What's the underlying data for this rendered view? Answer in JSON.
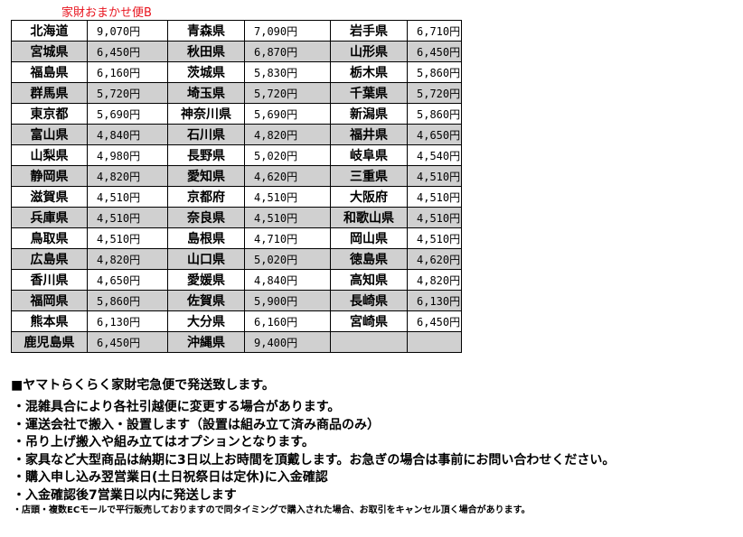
{
  "title": "家財おまかせ便B",
  "rows": [
    [
      [
        "北海道",
        "9,070円"
      ],
      [
        "青森県",
        "7,090円"
      ],
      [
        "岩手県",
        "6,710円"
      ]
    ],
    [
      [
        "宮城県",
        "6,450円"
      ],
      [
        "秋田県",
        "6,870円"
      ],
      [
        "山形県",
        "6,450円"
      ]
    ],
    [
      [
        "福島県",
        "6,160円"
      ],
      [
        "茨城県",
        "5,830円"
      ],
      [
        "栃木県",
        "5,860円"
      ]
    ],
    [
      [
        "群馬県",
        "5,720円"
      ],
      [
        "埼玉県",
        "5,720円"
      ],
      [
        "千葉県",
        "5,720円"
      ]
    ],
    [
      [
        "東京都",
        "5,690円"
      ],
      [
        "神奈川県",
        "5,690円"
      ],
      [
        "新潟県",
        "5,860円"
      ]
    ],
    [
      [
        "富山県",
        "4,840円"
      ],
      [
        "石川県",
        "4,820円"
      ],
      [
        "福井県",
        "4,650円"
      ]
    ],
    [
      [
        "山梨県",
        "4,980円"
      ],
      [
        "長野県",
        "5,020円"
      ],
      [
        "岐阜県",
        "4,540円"
      ]
    ],
    [
      [
        "静岡県",
        "4,820円"
      ],
      [
        "愛知県",
        "4,620円"
      ],
      [
        "三重県",
        "4,510円"
      ]
    ],
    [
      [
        "滋賀県",
        "4,510円"
      ],
      [
        "京都府",
        "4,510円"
      ],
      [
        "大阪府",
        "4,510円"
      ]
    ],
    [
      [
        "兵庫県",
        "4,510円"
      ],
      [
        "奈良県",
        "4,510円"
      ],
      [
        "和歌山県",
        "4,510円"
      ]
    ],
    [
      [
        "鳥取県",
        "4,510円"
      ],
      [
        "島根県",
        "4,710円"
      ],
      [
        "岡山県",
        "4,510円"
      ]
    ],
    [
      [
        "広島県",
        "4,820円"
      ],
      [
        "山口県",
        "5,020円"
      ],
      [
        "徳島県",
        "4,620円"
      ]
    ],
    [
      [
        "香川県",
        "4,650円"
      ],
      [
        "愛媛県",
        "4,840円"
      ],
      [
        "高知県",
        "4,820円"
      ]
    ],
    [
      [
        "福岡県",
        "5,860円"
      ],
      [
        "佐賀県",
        "5,900円"
      ],
      [
        "長崎県",
        "6,130円"
      ]
    ],
    [
      [
        "熊本県",
        "6,130円"
      ],
      [
        "大分県",
        "6,160円"
      ],
      [
        "宮崎県",
        "6,450円"
      ]
    ],
    [
      [
        "鹿児島県",
        "6,450円"
      ],
      [
        "沖縄県",
        "9,400円"
      ],
      [
        "",
        ""
      ]
    ]
  ],
  "heading": "■ヤマトらくらく家財宅急便で発送致します。",
  "notes": [
    "・混雑具合により各社引越便に変更する場合があります。",
    "・運送会社で搬入・設置します（設置は組み立て済み商品のみ）",
    "・吊り上げ搬入や組み立てはオプションとなります。",
    "・家具など大型商品は納期に3日以上お時間を頂戴します。お急ぎの場合は事前にお問い合わせください。",
    "・購入申し込み翌営業日(土日祝祭日は定休)に入金確認",
    "・入金確認後7営業日以内に発送します"
  ],
  "small_note": "・店頭・複数ECモールで平行販売しておりますので同タイミングで購入された場合、お取引をキャンセル頂く場合があります。"
}
